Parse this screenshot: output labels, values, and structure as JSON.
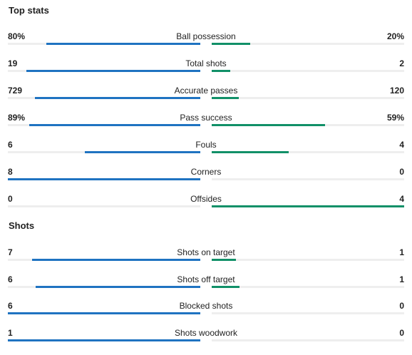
{
  "sections": [
    {
      "title": "Top stats",
      "rows": [
        {
          "label": "Ball possession",
          "home": "80%",
          "away": "20%",
          "home_share": 0.8,
          "away_share": 0.2
        },
        {
          "label": "Total shots",
          "home": "19",
          "away": "2",
          "home_share": 0.905,
          "away_share": 0.095
        },
        {
          "label": "Accurate passes",
          "home": "729",
          "away": "120",
          "home_share": 0.859,
          "away_share": 0.141
        },
        {
          "label": "Pass success",
          "home": "89%",
          "away": "59%",
          "home_share": 0.89,
          "away_share": 0.59
        },
        {
          "label": "Fouls",
          "home": "6",
          "away": "4",
          "home_share": 0.6,
          "away_share": 0.4
        },
        {
          "label": "Corners",
          "home": "8",
          "away": "0",
          "home_share": 1.0,
          "away_share": 0.0
        },
        {
          "label": "Offsides",
          "home": "0",
          "away": "4",
          "home_share": 0.0,
          "away_share": 1.0
        }
      ]
    },
    {
      "title": "Shots",
      "rows": [
        {
          "label": "Shots on target",
          "home": "7",
          "away": "1",
          "home_share": 0.875,
          "away_share": 0.125
        },
        {
          "label": "Shots off target",
          "home": "6",
          "away": "1",
          "home_share": 0.857,
          "away_share": 0.143
        },
        {
          "label": "Blocked shots",
          "home": "6",
          "away": "0",
          "home_share": 1.0,
          "away_share": 0.0
        },
        {
          "label": "Shots woodwork",
          "home": "1",
          "away": "0",
          "home_share": 1.0,
          "away_share": 0.0
        }
      ]
    }
  ],
  "colors": {
    "home_bar": "#1f73c1",
    "away_bar": "#119068",
    "track": "#eeeeee"
  }
}
